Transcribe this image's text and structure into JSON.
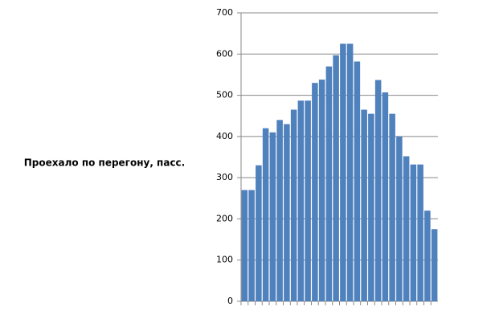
{
  "chart_data": {
    "type": "bar",
    "y_label": "Проехало по перегону, пасс.",
    "categories": [
      null,
      null,
      null,
      null,
      null,
      null,
      null,
      null,
      null,
      null,
      null,
      null,
      null,
      null,
      null,
      null,
      null,
      null,
      null,
      null,
      null,
      null,
      null,
      null,
      null,
      null,
      null,
      null
    ],
    "values": [
      270,
      270,
      330,
      420,
      410,
      440,
      430,
      465,
      487,
      487,
      530,
      538,
      570,
      597,
      625,
      625,
      582,
      465,
      455,
      537,
      507,
      455,
      400,
      352,
      332,
      332,
      220,
      175
    ],
    "color": "#4f81bd",
    "ylim": [
      0,
      700
    ],
    "yticks": [
      0,
      100,
      200,
      300,
      400,
      500,
      600,
      700
    ],
    "grid": true
  }
}
